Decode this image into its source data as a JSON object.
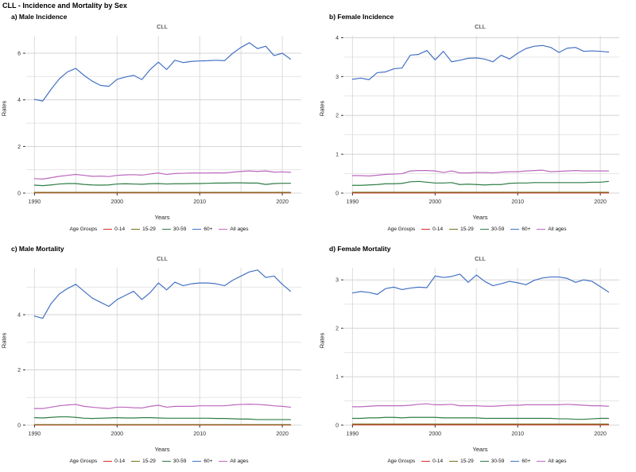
{
  "figure": {
    "title": "CLL - Incidence and Mortality by Sex"
  },
  "legend": {
    "title": "Age Groups",
    "entries": [
      {
        "label": "0-14",
        "color": "#d62f2f"
      },
      {
        "label": "15-29",
        "color": "#79711c"
      },
      {
        "label": "30-59",
        "color": "#2e7d46"
      },
      {
        "label": "60+",
        "color": "#4472c4"
      },
      {
        "label": "All ages",
        "color": "#bd68bd"
      }
    ]
  },
  "years": [
    1990,
    1991,
    1992,
    1993,
    1994,
    1995,
    1996,
    1997,
    1998,
    1999,
    2000,
    2001,
    2002,
    2003,
    2004,
    2005,
    2006,
    2007,
    2008,
    2009,
    2010,
    2011,
    2012,
    2013,
    2014,
    2015,
    2016,
    2017,
    2018,
    2019,
    2020,
    2021
  ],
  "chart_data": [
    {
      "type": "line",
      "panel_label": "a) Male Incidence",
      "title": "CLL",
      "xlabel": "Years",
      "ylabel": "Rates",
      "ylim": [
        0,
        6.75
      ],
      "yticks": [
        0,
        2,
        4,
        6
      ],
      "yticks_minor": [
        1,
        3,
        5
      ],
      "xticks": [
        1990,
        2000,
        2010,
        2020
      ],
      "xgrid": [
        1990,
        1995,
        2000,
        2005,
        2010,
        2015,
        2020
      ],
      "grid": "major+minor",
      "legend_position": "bottom",
      "series": [
        {
          "name": "0-14",
          "values": 0.01
        },
        {
          "name": "15-29",
          "values": 0.03
        },
        {
          "name": "30-59",
          "values": [
            0.34,
            0.32,
            0.35,
            0.39,
            0.41,
            0.41,
            0.37,
            0.35,
            0.34,
            0.35,
            0.39,
            0.4,
            0.39,
            0.38,
            0.4,
            0.41,
            0.39,
            0.4,
            0.4,
            0.41,
            0.41,
            0.42,
            0.43,
            0.43,
            0.44,
            0.44,
            0.43,
            0.43,
            0.37,
            0.41,
            0.42,
            0.42
          ]
        },
        {
          "name": "60+",
          "values": [
            4.02,
            3.95,
            4.45,
            4.9,
            5.2,
            5.35,
            5.05,
            4.8,
            4.62,
            4.58,
            4.88,
            4.98,
            5.05,
            4.87,
            5.3,
            5.62,
            5.3,
            5.7,
            5.6,
            5.65,
            5.67,
            5.68,
            5.7,
            5.68,
            6.0,
            6.25,
            6.45,
            6.2,
            6.3,
            5.9,
            6.0,
            5.75
          ]
        },
        {
          "name": "All ages",
          "values": [
            0.62,
            0.6,
            0.66,
            0.72,
            0.76,
            0.8,
            0.76,
            0.72,
            0.73,
            0.71,
            0.76,
            0.78,
            0.79,
            0.77,
            0.82,
            0.86,
            0.8,
            0.84,
            0.85,
            0.86,
            0.86,
            0.86,
            0.87,
            0.86,
            0.9,
            0.93,
            0.95,
            0.93,
            0.95,
            0.9,
            0.91,
            0.89
          ]
        }
      ]
    },
    {
      "type": "line",
      "panel_label": "b) Female Incidence",
      "title": "CLL",
      "xlabel": "Years",
      "ylabel": "Rates",
      "ylim": [
        0,
        4.05
      ],
      "yticks": [
        0,
        1,
        2,
        3,
        4
      ],
      "yticks_minor": [
        0.5,
        1.5,
        2.5,
        3.5
      ],
      "xticks": [
        1990,
        2000,
        2010,
        2020
      ],
      "xgrid": [
        1990,
        1995,
        2000,
        2005,
        2010,
        2015,
        2020
      ],
      "grid": "major+minor",
      "legend_position": "bottom",
      "series": [
        {
          "name": "0-14",
          "values": 0.005
        },
        {
          "name": "15-29",
          "values": 0.02
        },
        {
          "name": "30-59",
          "values": [
            0.2,
            0.2,
            0.21,
            0.22,
            0.24,
            0.24,
            0.25,
            0.29,
            0.3,
            0.28,
            0.26,
            0.26,
            0.27,
            0.22,
            0.23,
            0.22,
            0.21,
            0.22,
            0.22,
            0.25,
            0.26,
            0.26,
            0.27,
            0.27,
            0.27,
            0.27,
            0.27,
            0.27,
            0.27,
            0.28,
            0.28,
            0.3
          ]
        },
        {
          "name": "60+",
          "values": [
            2.93,
            2.96,
            2.92,
            3.1,
            3.12,
            3.2,
            3.22,
            3.55,
            3.57,
            3.67,
            3.43,
            3.65,
            3.38,
            3.42,
            3.47,
            3.48,
            3.45,
            3.38,
            3.55,
            3.45,
            3.6,
            3.72,
            3.78,
            3.8,
            3.75,
            3.62,
            3.73,
            3.75,
            3.65,
            3.66,
            3.65,
            3.63
          ]
        },
        {
          "name": "All ages",
          "values": [
            0.45,
            0.45,
            0.44,
            0.46,
            0.48,
            0.49,
            0.5,
            0.57,
            0.58,
            0.58,
            0.57,
            0.53,
            0.57,
            0.52,
            0.52,
            0.53,
            0.53,
            0.52,
            0.54,
            0.55,
            0.55,
            0.57,
            0.58,
            0.59,
            0.55,
            0.56,
            0.57,
            0.58,
            0.57,
            0.57,
            0.57,
            0.57
          ]
        }
      ]
    },
    {
      "type": "line",
      "panel_label": "c) Male Mortality",
      "title": "CLL",
      "xlabel": "Years",
      "ylabel": "Rates",
      "ylim": [
        0,
        5.7
      ],
      "yticks": [
        0,
        2,
        4
      ],
      "yticks_minor": [
        1,
        3,
        5
      ],
      "xticks": [
        1990,
        2000,
        2010,
        2020
      ],
      "xgrid": [
        1990,
        1995,
        2000,
        2005,
        2010,
        2015,
        2020
      ],
      "grid": "major+minor",
      "legend_position": "bottom",
      "series": [
        {
          "name": "0-14",
          "values": 0.005
        },
        {
          "name": "15-29",
          "values": 0.02
        },
        {
          "name": "30-59",
          "values": [
            0.27,
            0.26,
            0.28,
            0.3,
            0.3,
            0.28,
            0.25,
            0.24,
            0.25,
            0.26,
            0.27,
            0.26,
            0.26,
            0.27,
            0.27,
            0.26,
            0.25,
            0.25,
            0.25,
            0.25,
            0.25,
            0.25,
            0.24,
            0.24,
            0.23,
            0.22,
            0.22,
            0.2,
            0.2,
            0.2,
            0.2,
            0.2
          ]
        },
        {
          "name": "60+",
          "values": [
            3.95,
            3.87,
            4.4,
            4.75,
            4.95,
            5.1,
            4.85,
            4.6,
            4.45,
            4.3,
            4.55,
            4.7,
            4.85,
            4.55,
            4.8,
            5.15,
            4.9,
            5.18,
            5.05,
            5.12,
            5.15,
            5.15,
            5.12,
            5.05,
            5.25,
            5.4,
            5.55,
            5.62,
            5.35,
            5.4,
            5.1,
            4.85
          ]
        },
        {
          "name": "All ages",
          "values": [
            0.6,
            0.6,
            0.65,
            0.7,
            0.73,
            0.75,
            0.68,
            0.65,
            0.62,
            0.6,
            0.65,
            0.65,
            0.63,
            0.62,
            0.68,
            0.72,
            0.65,
            0.68,
            0.68,
            0.68,
            0.7,
            0.7,
            0.7,
            0.7,
            0.73,
            0.75,
            0.76,
            0.75,
            0.73,
            0.7,
            0.68,
            0.65
          ]
        }
      ]
    },
    {
      "type": "line",
      "panel_label": "d) Female Mortality",
      "title": "CLL",
      "xlabel": "Years",
      "ylabel": "Rates",
      "ylim": [
        0,
        3.25
      ],
      "yticks": [
        0,
        1,
        2,
        3
      ],
      "yticks_minor": [
        0.5,
        1.5,
        2.5
      ],
      "xticks": [
        1990,
        2000,
        2010,
        2020
      ],
      "xgrid": [
        1990,
        1995,
        2000,
        2005,
        2010,
        2015,
        2020
      ],
      "grid": "major+minor",
      "legend_position": "bottom",
      "series": [
        {
          "name": "0-14",
          "values": 0.005
        },
        {
          "name": "15-29",
          "values": 0.02
        },
        {
          "name": "30-59",
          "values": [
            0.14,
            0.14,
            0.15,
            0.15,
            0.16,
            0.16,
            0.15,
            0.16,
            0.16,
            0.16,
            0.16,
            0.15,
            0.15,
            0.15,
            0.15,
            0.15,
            0.14,
            0.14,
            0.14,
            0.14,
            0.14,
            0.14,
            0.14,
            0.14,
            0.14,
            0.13,
            0.13,
            0.12,
            0.12,
            0.13,
            0.14,
            0.14
          ]
        },
        {
          "name": "60+",
          "values": [
            2.73,
            2.76,
            2.74,
            2.7,
            2.82,
            2.85,
            2.8,
            2.83,
            2.85,
            2.84,
            3.08,
            3.05,
            3.07,
            3.12,
            2.95,
            3.1,
            2.97,
            2.88,
            2.92,
            2.97,
            2.94,
            2.9,
            2.99,
            3.04,
            3.06,
            3.06,
            3.03,
            2.95,
            3.0,
            2.97,
            2.86,
            2.75
          ]
        },
        {
          "name": "All ages",
          "values": [
            0.38,
            0.38,
            0.39,
            0.4,
            0.4,
            0.4,
            0.4,
            0.41,
            0.43,
            0.44,
            0.42,
            0.42,
            0.43,
            0.4,
            0.4,
            0.4,
            0.39,
            0.39,
            0.4,
            0.41,
            0.41,
            0.42,
            0.42,
            0.42,
            0.42,
            0.42,
            0.43,
            0.42,
            0.41,
            0.4,
            0.4,
            0.39
          ]
        }
      ]
    }
  ]
}
